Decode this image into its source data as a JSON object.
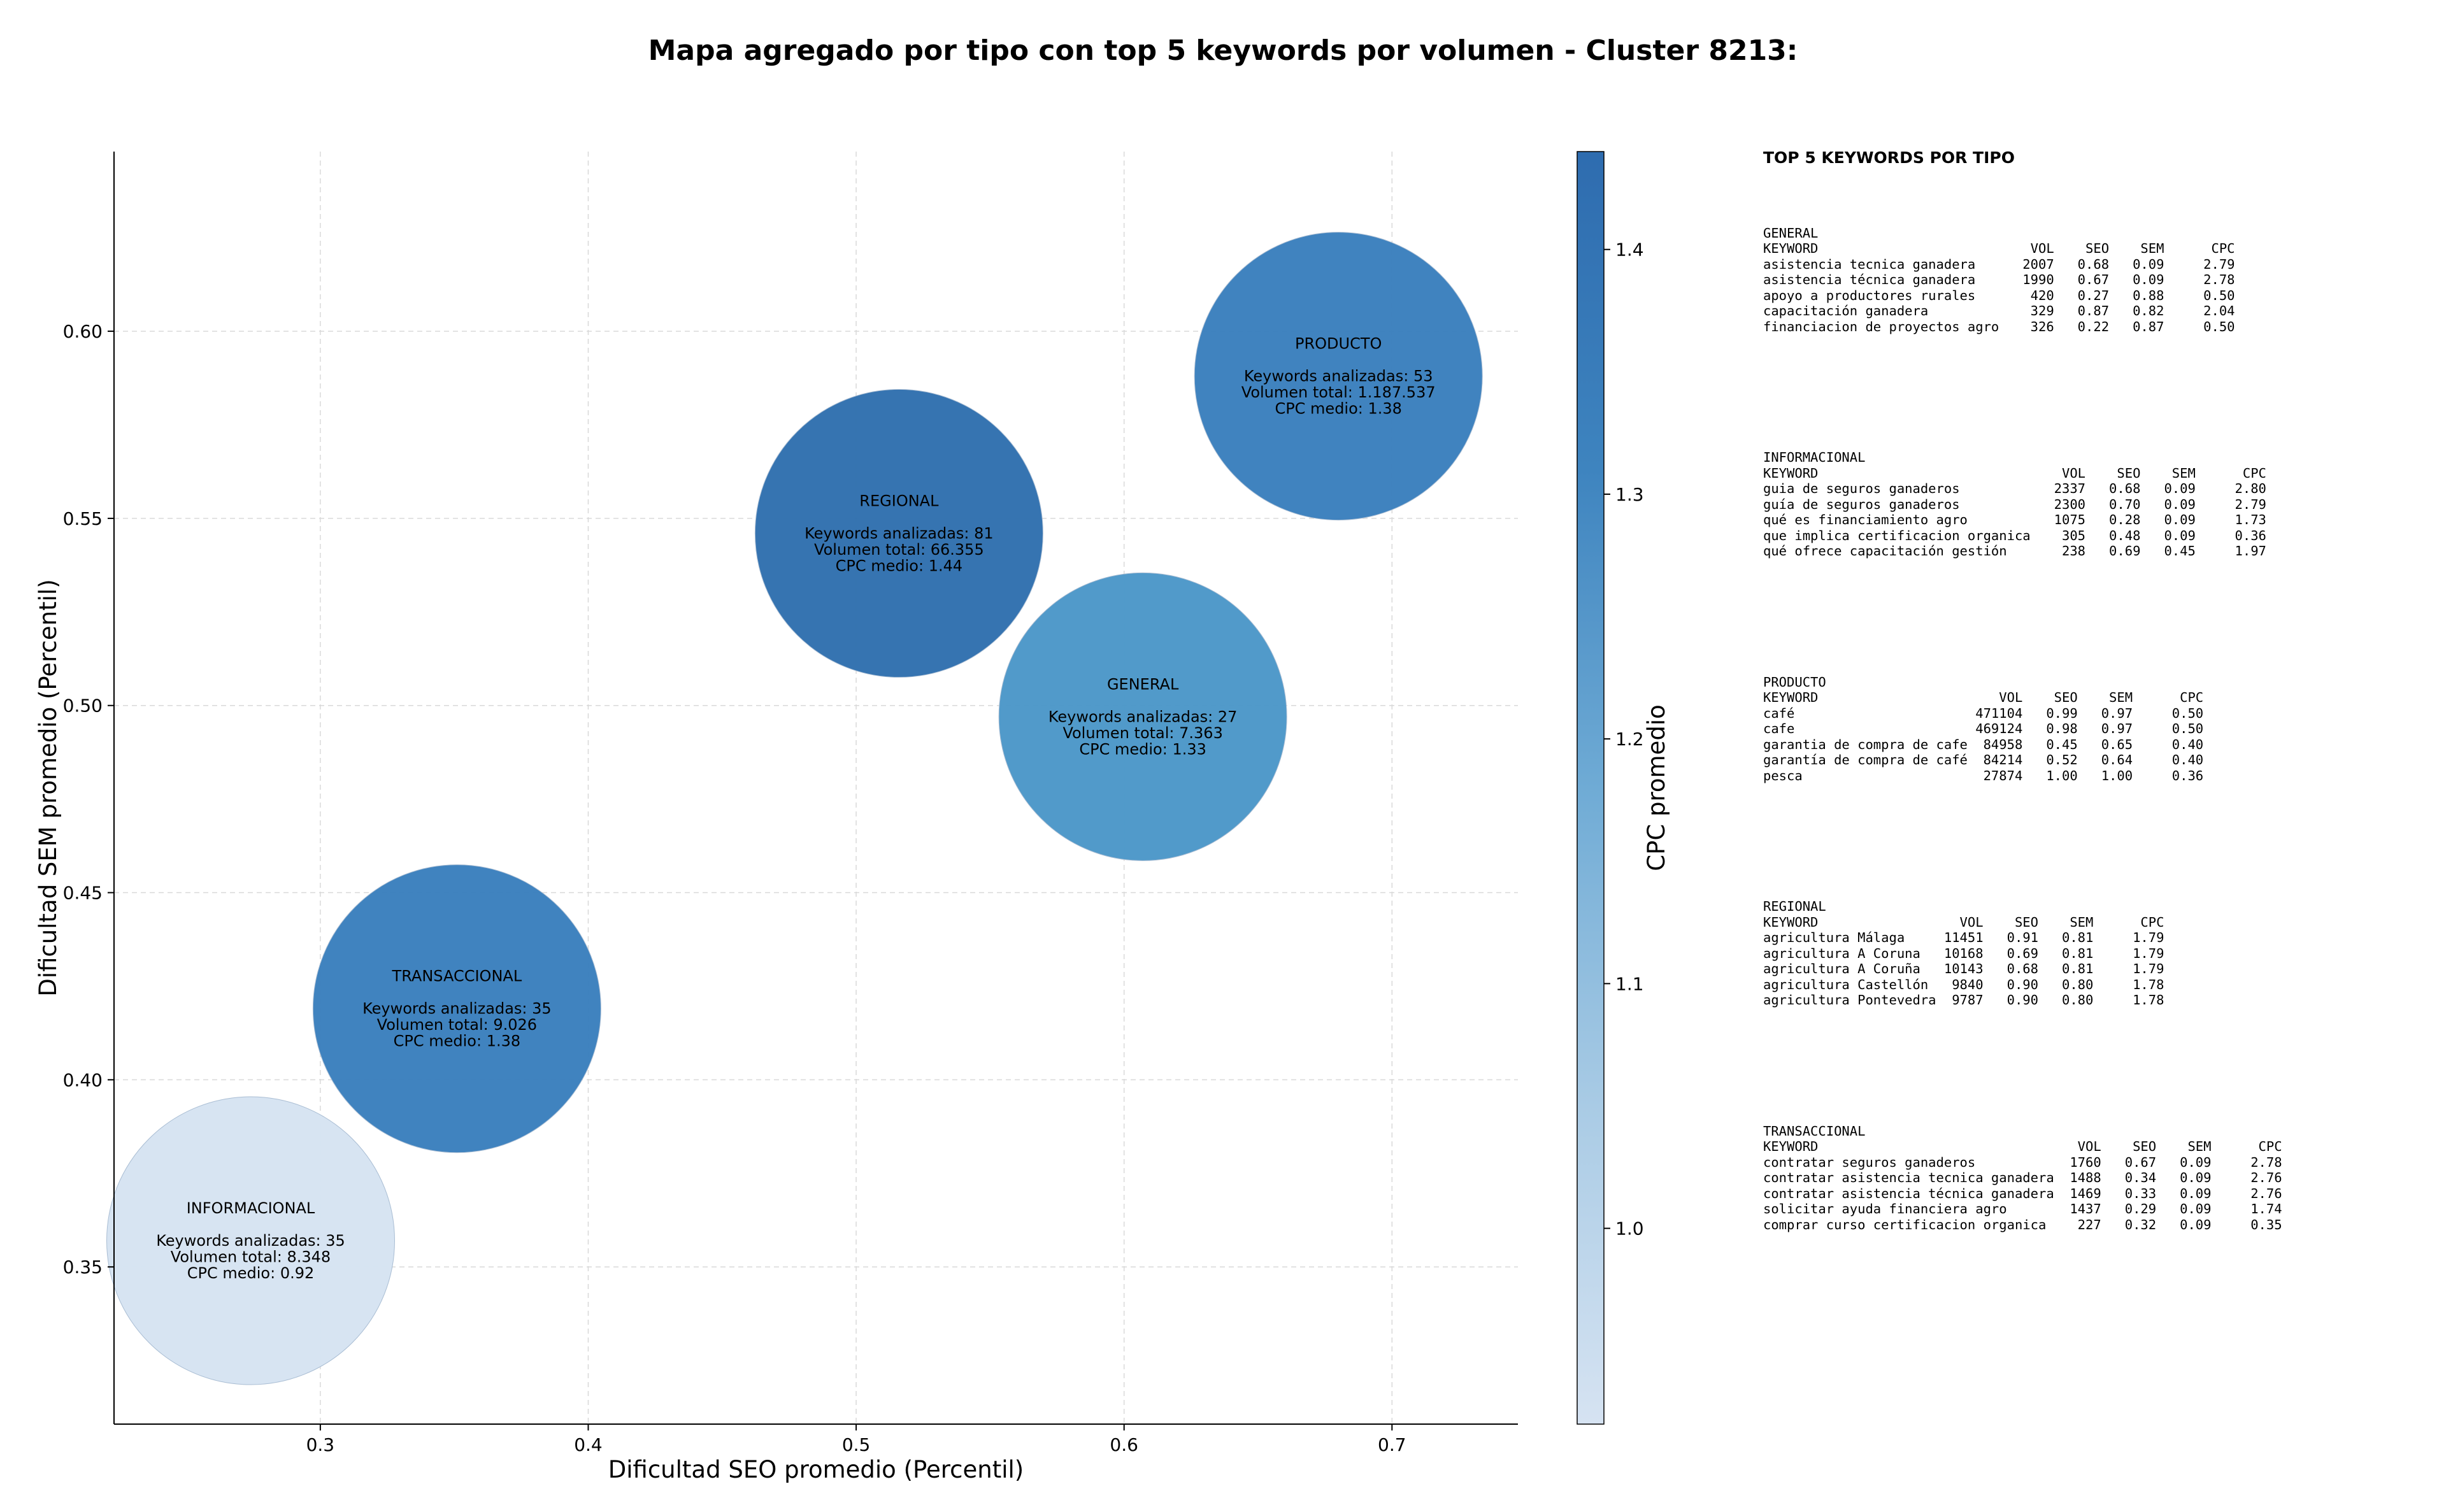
{
  "title": "Mapa agregado por tipo con top 5 keywords por volumen - Cluster 8213:",
  "chart_data": {
    "type": "scatter",
    "title": "Mapa agregado por tipo con top 5 keywords por volumen - Cluster 8213:",
    "xlabel": "Dificultad SEO promedio (Percentil)",
    "ylabel": "Dificultad SEM promedio (Percentil)",
    "colorbar_label": "CPC promedio",
    "xlim": [
      0.223,
      0.747
    ],
    "ylim": [
      0.308,
      0.648
    ],
    "xticks": [
      0.3,
      0.4,
      0.5,
      0.6,
      0.7
    ],
    "yticks": [
      0.35,
      0.4,
      0.45,
      0.5,
      0.55,
      0.6
    ],
    "xtick_labels": [
      "0.3",
      "0.4",
      "0.5",
      "0.6",
      "0.7"
    ],
    "ytick_labels": [
      "0.35",
      "0.40",
      "0.45",
      "0.50",
      "0.55",
      "0.60"
    ],
    "colorbar_range": [
      0.92,
      1.44
    ],
    "colorbar_ticks": [
      1.0,
      1.1,
      1.2,
      1.3,
      1.4
    ],
    "colorbar_tick_labels": [
      "1.0",
      "1.1",
      "1.2",
      "1.3",
      "1.4"
    ],
    "colormap_colors": [
      "#d6e3f2",
      "#a9cbe5",
      "#6fabd5",
      "#3e84bf",
      "#2e6caf"
    ],
    "grid": true,
    "legend": "none",
    "points": [
      {
        "label": "PRODUCTO",
        "x": 0.68,
        "y": 0.588,
        "cpc": 1.38,
        "color": "#3a7fbd",
        "lines": [
          "PRODUCTO",
          "",
          "Keywords analizadas: 53",
          "Volumen total: 1.187.537",
          "CPC medio: 1.38"
        ]
      },
      {
        "label": "REGIONAL",
        "x": 0.516,
        "y": 0.546,
        "cpc": 1.44,
        "color": "#2f6fae",
        "lines": [
          "REGIONAL",
          "",
          "Keywords analizadas: 81",
          "Volumen total: 66.355",
          "CPC medio: 1.44"
        ]
      },
      {
        "label": "GENERAL",
        "x": 0.607,
        "y": 0.497,
        "cpc": 1.33,
        "color": "#4b97c8",
        "lines": [
          "GENERAL",
          "",
          "Keywords analizadas: 27",
          "Volumen total: 7.363",
          "CPC medio: 1.33"
        ]
      },
      {
        "label": "TRANSACCIONAL",
        "x": 0.351,
        "y": 0.419,
        "cpc": 1.38,
        "color": "#3a7fbd",
        "lines": [
          "TRANSACCIONAL",
          "",
          "Keywords analizadas: 35",
          "Volumen total: 9.026",
          "CPC medio: 1.38"
        ]
      },
      {
        "label": "INFORMACIONAL",
        "x": 0.274,
        "y": 0.357,
        "cpc": 0.92,
        "color": "#d6e3f2",
        "lines": [
          "INFORMACIONAL",
          "",
          "Keywords analizadas: 35",
          "Volumen total: 8.348",
          "CPC medio: 0.92"
        ]
      }
    ]
  },
  "side_panel": {
    "title": "TOP 5 KEYWORDS POR TIPO",
    "blocks": [
      {
        "name": "GENERAL",
        "lines": [
          "GENERAL",
          "KEYWORD                           VOL    SEO    SEM      CPC",
          "asistencia tecnica ganadera      2007   0.68   0.09     2.79",
          "asistencia técnica ganadera      1990   0.67   0.09     2.78",
          "apoyo a productores rurales       420   0.27   0.88     0.50",
          "capacitación ganadera             329   0.87   0.82     2.04",
          "financiacion de proyectos agro    326   0.22   0.87     0.50"
        ]
      },
      {
        "name": "INFORMACIONAL",
        "lines": [
          "INFORMACIONAL",
          "KEYWORD                               VOL    SEO    SEM      CPC",
          "guia de seguros ganaderos            2337   0.68   0.09     2.80",
          "guía de seguros ganaderos            2300   0.70   0.09     2.79",
          "qué es financiamiento agro           1075   0.28   0.09     1.73",
          "que implica certificacion organica    305   0.48   0.09     0.36",
          "qué ofrece capacitación gestión       238   0.69   0.45     1.97"
        ]
      },
      {
        "name": "PRODUCTO",
        "lines": [
          "PRODUCTO",
          "KEYWORD                       VOL    SEO    SEM      CPC",
          "café                       471104   0.99   0.97     0.50",
          "cafe                       469124   0.98   0.97     0.50",
          "garantia de compra de cafe  84958   0.45   0.65     0.40",
          "garantía de compra de café  84214   0.52   0.64     0.40",
          "pesca                       27874   1.00   1.00     0.36"
        ]
      },
      {
        "name": "REGIONAL",
        "lines": [
          "REGIONAL",
          "KEYWORD                  VOL    SEO    SEM      CPC",
          "agricultura Málaga     11451   0.91   0.81     1.79",
          "agricultura A Coruna   10168   0.69   0.81     1.79",
          "agricultura A Coruña   10143   0.68   0.81     1.79",
          "agricultura Castellón   9840   0.90   0.80     1.78",
          "agricultura Pontevedra  9787   0.90   0.80     1.78"
        ]
      },
      {
        "name": "TRANSACCIONAL",
        "lines": [
          "TRANSACCIONAL",
          "KEYWORD                                 VOL    SEO    SEM      CPC",
          "contratar seguros ganaderos            1760   0.67   0.09     2.78",
          "contratar asistencia tecnica ganadera  1488   0.34   0.09     2.76",
          "contratar asistencia técnica ganadera  1469   0.33   0.09     2.76",
          "solicitar ayuda financiera agro        1437   0.29   0.09     1.74",
          "comprar curso certificacion organica    227   0.32   0.09     0.35"
        ]
      }
    ]
  }
}
